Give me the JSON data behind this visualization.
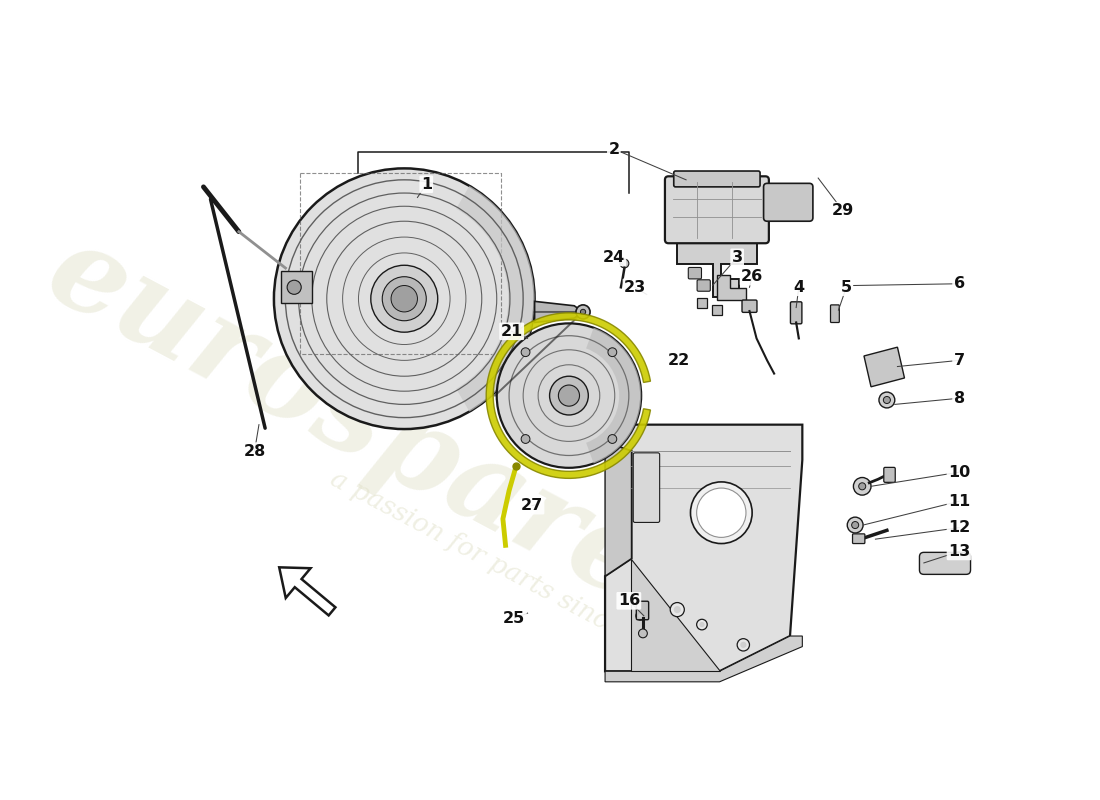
{
  "bg_color": "#ffffff",
  "lc": "#1a1a1a",
  "gray_light": "#d8d8d8",
  "gray_mid": "#b0b0b0",
  "gray_dark": "#808080",
  "gray_fill": "#e8e8e8",
  "wm_color": "#e0e0c8",
  "highlight": "#cccc00",
  "figsize": [
    11.0,
    8.0
  ],
  "dpi": 100
}
